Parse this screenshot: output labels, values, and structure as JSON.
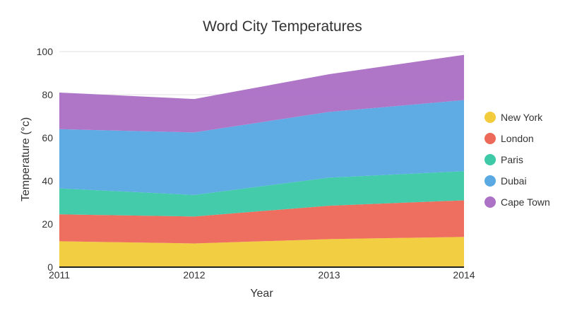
{
  "chart_data": {
    "type": "area",
    "stacked": true,
    "title": "Word City Temperatures",
    "xlabel": "Year",
    "ylabel": "Temperature (°c)",
    "x": [
      "2011",
      "2012",
      "2013",
      "2014"
    ],
    "ylim": [
      0,
      100
    ],
    "yticks": [
      0,
      20,
      40,
      60,
      80,
      100
    ],
    "grid": true,
    "legend_position": "right",
    "series": [
      {
        "name": "New York",
        "color": "#f2cc3d",
        "values": [
          12,
          11,
          13,
          14
        ]
      },
      {
        "name": "London",
        "color": "#ed6a5a",
        "values": [
          12.5,
          12.5,
          15.5,
          17
        ]
      },
      {
        "name": "Paris",
        "color": "#3ec9a7",
        "values": [
          12,
          10,
          13,
          13.5
        ]
      },
      {
        "name": "Dubai",
        "color": "#5aa9e3",
        "values": [
          27.5,
          29,
          30.5,
          33
        ]
      },
      {
        "name": "Cape Town",
        "color": "#ac72c6",
        "values": [
          17,
          15.5,
          17.5,
          21
        ]
      }
    ]
  }
}
